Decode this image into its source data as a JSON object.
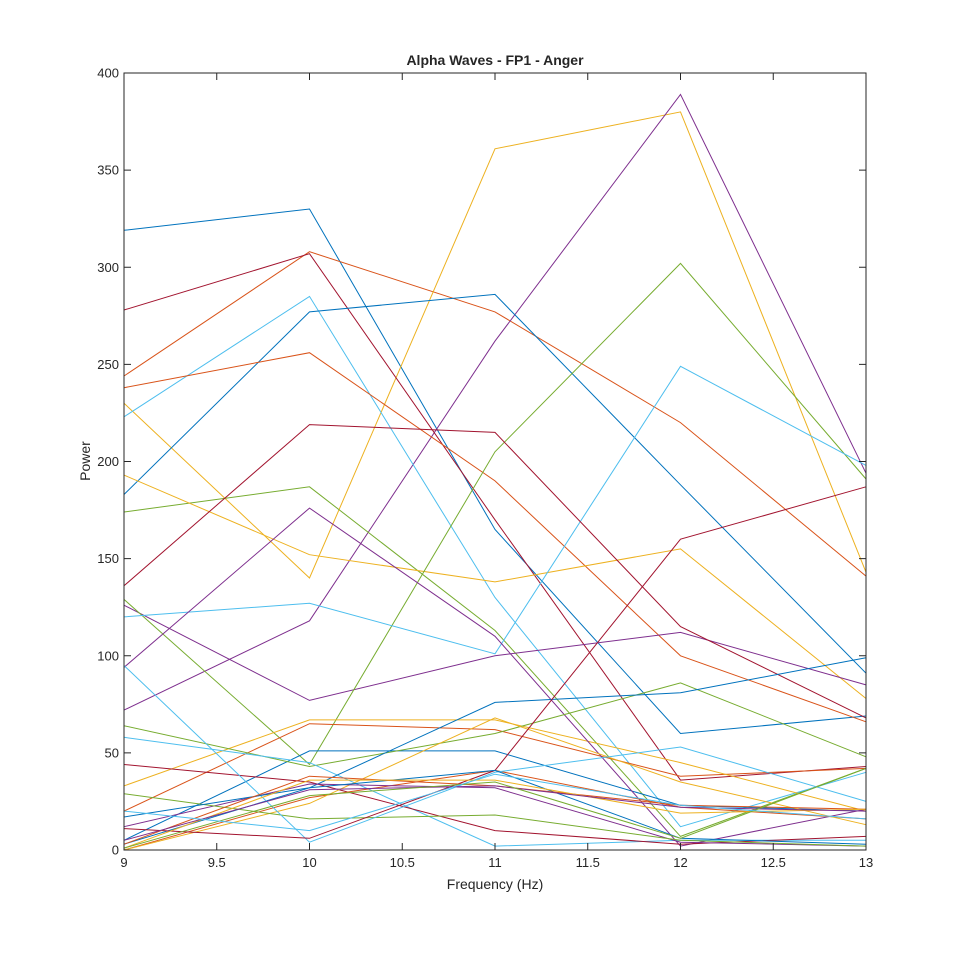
{
  "chart_data": {
    "type": "line",
    "title": "Alpha Waves - FP1 - Anger",
    "xlabel": "Frequency (Hz)",
    "ylabel": "Power",
    "xlim": [
      9,
      13
    ],
    "ylim": [
      0,
      400
    ],
    "x": [
      9,
      10,
      11,
      12,
      13
    ],
    "xticks": [
      9,
      9.5,
      10,
      10.5,
      11,
      11.5,
      12,
      12.5,
      13
    ],
    "xtick_labels": [
      "9",
      "9.5",
      "10",
      "10.5",
      "11",
      "11.5",
      "12",
      "12.5",
      "13"
    ],
    "yticks": [
      0,
      50,
      100,
      150,
      200,
      250,
      300,
      350,
      400
    ],
    "ytick_labels": [
      "0",
      "50",
      "100",
      "150",
      "200",
      "250",
      "300",
      "350",
      "400"
    ],
    "grid": false,
    "legend": "none",
    "series": [
      {
        "color": "#0072BD",
        "values": [
          319,
          330,
          165,
          60,
          69
        ]
      },
      {
        "color": "#D95319",
        "values": [
          244,
          308,
          277,
          220,
          141
        ]
      },
      {
        "color": "#EDB120",
        "values": [
          230,
          140,
          361,
          380,
          143
        ]
      },
      {
        "color": "#7E2F8E",
        "values": [
          72,
          118,
          262,
          389,
          194
        ]
      },
      {
        "color": "#77AC30",
        "values": [
          174,
          187,
          113,
          7,
          42
        ]
      },
      {
        "color": "#4DBEEE",
        "values": [
          223,
          285,
          130,
          12,
          40
        ]
      },
      {
        "color": "#A2142F",
        "values": [
          278,
          307,
          170,
          36,
          43
        ]
      },
      {
        "color": "#0072BD",
        "values": [
          183,
          277,
          286,
          188,
          91
        ]
      },
      {
        "color": "#D95319",
        "values": [
          238,
          256,
          190,
          100,
          66
        ]
      },
      {
        "color": "#EDB120",
        "values": [
          193,
          152,
          138,
          155,
          78
        ]
      },
      {
        "color": "#7E2F8E",
        "values": [
          126,
          77,
          100,
          112,
          85
        ]
      },
      {
        "color": "#77AC30",
        "values": [
          129,
          44,
          205,
          302,
          191
        ]
      },
      {
        "color": "#4DBEEE",
        "values": [
          120,
          127,
          101,
          249,
          198
        ]
      },
      {
        "color": "#A2142F",
        "values": [
          136,
          219,
          215,
          115,
          68
        ]
      },
      {
        "color": "#0072BD",
        "values": [
          5,
          51,
          51,
          23,
          20
        ]
      },
      {
        "color": "#D95319",
        "values": [
          20,
          65,
          62,
          38,
          42
        ]
      },
      {
        "color": "#EDB120",
        "values": [
          33,
          67,
          67,
          45,
          20
        ]
      },
      {
        "color": "#7E2F8E",
        "values": [
          94,
          176,
          110,
          2,
          21
        ]
      },
      {
        "color": "#77AC30",
        "values": [
          64,
          43,
          60,
          86,
          48
        ]
      },
      {
        "color": "#4DBEEE",
        "values": [
          58,
          45,
          2,
          5,
          5
        ]
      },
      {
        "color": "#A2142F",
        "values": [
          44,
          35,
          10,
          3,
          7
        ]
      },
      {
        "color": "#0072BD",
        "values": [
          3,
          32,
          76,
          81,
          99
        ]
      },
      {
        "color": "#D95319",
        "values": [
          0,
          27,
          41,
          22,
          16
        ]
      },
      {
        "color": "#EDB120",
        "values": [
          0,
          24,
          68,
          35,
          13
        ]
      },
      {
        "color": "#7E2F8E",
        "values": [
          12,
          34,
          32,
          4,
          2
        ]
      },
      {
        "color": "#77AC30",
        "values": [
          29,
          16,
          18,
          5,
          2
        ]
      },
      {
        "color": "#4DBEEE",
        "values": [
          95,
          4,
          40,
          53,
          25
        ]
      },
      {
        "color": "#A2142F",
        "values": [
          11,
          6,
          41,
          160,
          187
        ]
      },
      {
        "color": "#0072BD",
        "values": [
          17,
          32,
          41,
          6,
          3
        ]
      },
      {
        "color": "#D95319",
        "values": [
          3,
          38,
          33,
          23,
          21
        ]
      },
      {
        "color": "#EDB120",
        "values": [
          1,
          36,
          36,
          19,
          21
        ]
      },
      {
        "color": "#7E2F8E",
        "values": [
          5,
          31,
          33,
          22,
          20
        ]
      },
      {
        "color": "#77AC30",
        "values": [
          1,
          28,
          35,
          6,
          42
        ]
      },
      {
        "color": "#4DBEEE",
        "values": [
          20,
          10,
          39,
          23,
          16
        ]
      }
    ]
  }
}
